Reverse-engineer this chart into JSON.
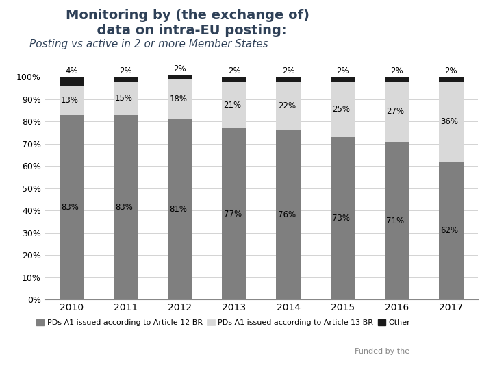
{
  "years": [
    "2010",
    "2011",
    "2012",
    "2013",
    "2014",
    "2015",
    "2016",
    "2017"
  ],
  "art12": [
    83,
    83,
    81,
    77,
    76,
    73,
    71,
    62
  ],
  "art13": [
    13,
    15,
    18,
    21,
    22,
    25,
    27,
    36
  ],
  "other": [
    4,
    2,
    2,
    2,
    2,
    2,
    2,
    2
  ],
  "art12_color": "#7f7f7f",
  "art13_color": "#d9d9d9",
  "other_color": "#1a1a1a",
  "title_line1": "Monitoring by (the exchange of)",
  "title_line2": "  data on intra-EU posting:",
  "subtitle": "Posting vs active in 2 or more Member States",
  "legend_art12": "PDs A1 issued according to Article 12 BR",
  "legend_art13": "PDs A1 issued according to Article 13 BR",
  "legend_other": "Other",
  "bg_color": "#ffffff",
  "ylabel_ticks": [
    "0%",
    "10%",
    "20%",
    "30%",
    "40%",
    "50%",
    "60%",
    "70%",
    "80%",
    "90%",
    "100%"
  ],
  "funded_text": "Funded by the"
}
